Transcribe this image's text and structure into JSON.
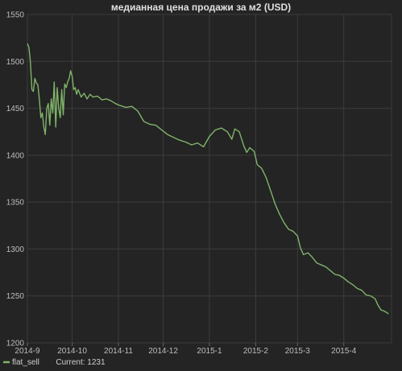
{
  "chart_data": {
    "type": "line",
    "title": "медианная цена продажи за м2 (USD)",
    "xlabel": "",
    "ylabel": "",
    "ylim": [
      1200,
      1550
    ],
    "yticks": [
      1200,
      1250,
      1300,
      1350,
      1400,
      1450,
      1500,
      1550
    ],
    "xticks": [
      "2014-9",
      "2014-10",
      "2014-11",
      "2014-12",
      "2015-1",
      "2015-2",
      "2015-3",
      "2015-4"
    ],
    "x_range_months": [
      "2014-9",
      "2015-4.95"
    ],
    "grid": true,
    "legend_position": "bottom-left",
    "series": [
      {
        "name": "flat_sell",
        "current_label": "Current: 1231",
        "color": "#7fb36a",
        "points": [
          [
            "2014-09-01",
            1519
          ],
          [
            "2014-09-02",
            1515
          ],
          [
            "2014-09-03",
            1500
          ],
          [
            "2014-09-04",
            1470
          ],
          [
            "2014-09-05",
            1468
          ],
          [
            "2014-09-06",
            1482
          ],
          [
            "2014-09-07",
            1477
          ],
          [
            "2014-09-08",
            1475
          ],
          [
            "2014-09-09",
            1460
          ],
          [
            "2014-09-10",
            1440
          ],
          [
            "2014-09-11",
            1445
          ],
          [
            "2014-09-12",
            1430
          ],
          [
            "2014-09-13",
            1422
          ],
          [
            "2014-09-14",
            1450
          ],
          [
            "2014-09-15",
            1455
          ],
          [
            "2014-09-16",
            1432
          ],
          [
            "2014-09-17",
            1460
          ],
          [
            "2014-09-18",
            1445
          ],
          [
            "2014-09-19",
            1478
          ],
          [
            "2014-09-20",
            1430
          ],
          [
            "2014-09-21",
            1472
          ],
          [
            "2014-09-22",
            1450
          ],
          [
            "2014-09-23",
            1440
          ],
          [
            "2014-09-24",
            1470
          ],
          [
            "2014-09-25",
            1443
          ],
          [
            "2014-09-26",
            1476
          ],
          [
            "2014-09-27",
            1472
          ],
          [
            "2014-09-28",
            1478
          ],
          [
            "2014-09-29",
            1482
          ],
          [
            "2014-09-30",
            1490
          ],
          [
            "2014-10-01",
            1484
          ],
          [
            "2014-10-02",
            1470
          ],
          [
            "2014-10-03",
            1472
          ],
          [
            "2014-10-04",
            1465
          ],
          [
            "2014-10-05",
            1470
          ],
          [
            "2014-10-07",
            1462
          ],
          [
            "2014-10-09",
            1466
          ],
          [
            "2014-10-11",
            1460
          ],
          [
            "2014-10-13",
            1465
          ],
          [
            "2014-10-15",
            1462
          ],
          [
            "2014-10-18",
            1463
          ],
          [
            "2014-10-21",
            1459
          ],
          [
            "2014-10-24",
            1460
          ],
          [
            "2014-10-27",
            1458
          ],
          [
            "2014-10-30",
            1455
          ],
          [
            "2014-11-02",
            1453
          ],
          [
            "2014-11-06",
            1451
          ],
          [
            "2014-11-10",
            1452
          ],
          [
            "2014-11-14",
            1447
          ],
          [
            "2014-11-18",
            1436
          ],
          [
            "2014-11-22",
            1433
          ],
          [
            "2014-11-26",
            1432
          ],
          [
            "2014-11-30",
            1427
          ],
          [
            "2014-12-04",
            1422
          ],
          [
            "2014-12-08",
            1419
          ],
          [
            "2014-12-12",
            1416
          ],
          [
            "2014-12-16",
            1414
          ],
          [
            "2014-12-20",
            1411
          ],
          [
            "2014-12-24",
            1413
          ],
          [
            "2014-12-28",
            1409
          ],
          [
            "2015-01-01",
            1420
          ],
          [
            "2015-01-05",
            1427
          ],
          [
            "2015-01-09",
            1429
          ],
          [
            "2015-01-13",
            1425
          ],
          [
            "2015-01-16",
            1417
          ],
          [
            "2015-01-18",
            1428
          ],
          [
            "2015-01-21",
            1425
          ],
          [
            "2015-01-24",
            1410
          ],
          [
            "2015-01-26",
            1403
          ],
          [
            "2015-01-28",
            1408
          ],
          [
            "2015-01-31",
            1404
          ],
          [
            "2015-02-02",
            1390
          ],
          [
            "2015-02-05",
            1386
          ],
          [
            "2015-02-08",
            1376
          ],
          [
            "2015-02-11",
            1362
          ],
          [
            "2015-02-14",
            1348
          ],
          [
            "2015-02-17",
            1337
          ],
          [
            "2015-02-20",
            1328
          ],
          [
            "2015-02-23",
            1321
          ],
          [
            "2015-02-26",
            1319
          ],
          [
            "2015-03-01",
            1314
          ],
          [
            "2015-03-03",
            1301
          ],
          [
            "2015-03-05",
            1294
          ],
          [
            "2015-03-08",
            1296
          ],
          [
            "2015-03-11",
            1291
          ],
          [
            "2015-03-14",
            1285
          ],
          [
            "2015-03-17",
            1283
          ],
          [
            "2015-03-20",
            1281
          ],
          [
            "2015-03-23",
            1277
          ],
          [
            "2015-03-26",
            1273
          ],
          [
            "2015-03-29",
            1272
          ],
          [
            "2015-04-01",
            1269
          ],
          [
            "2015-04-04",
            1265
          ],
          [
            "2015-04-07",
            1262
          ],
          [
            "2015-04-10",
            1258
          ],
          [
            "2015-04-13",
            1256
          ],
          [
            "2015-04-16",
            1251
          ],
          [
            "2015-04-19",
            1250
          ],
          [
            "2015-04-22",
            1247
          ],
          [
            "2015-04-24",
            1240
          ],
          [
            "2015-04-26",
            1235
          ],
          [
            "2015-04-28",
            1234
          ],
          [
            "2015-04-30",
            1232
          ],
          [
            "2015-05-01",
            1231
          ]
        ]
      }
    ]
  }
}
